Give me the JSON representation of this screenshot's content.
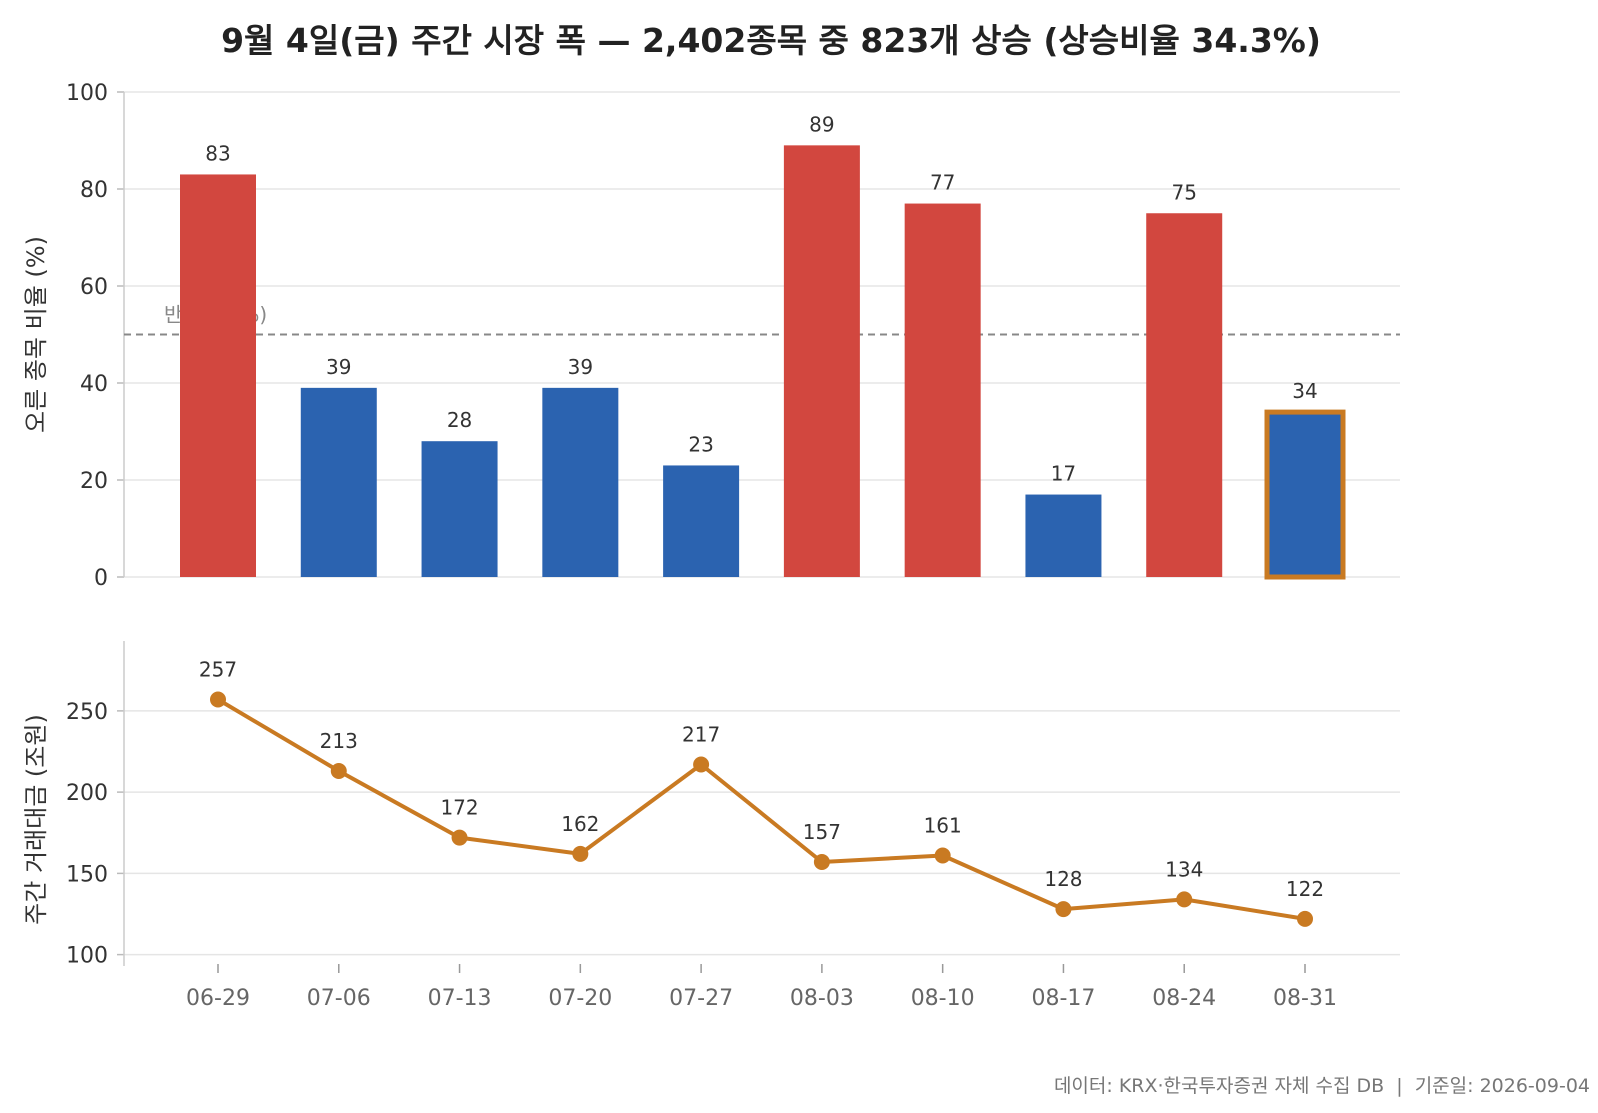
{
  "title": "9월 4일(금) 주간 시장 폭 — 2,402종목 중 823개 상승 (상승비율 34.3%)",
  "footer": "데이터: KRX·한국투자증권 자체 수집 DB  |  기준일: 2026-09-04",
  "colors": {
    "up": "#d2473f",
    "down": "#2b63b0",
    "accent": "#c97a22",
    "grid": "#e5e5e5",
    "refline": "#888888"
  },
  "chart_data": [
    {
      "type": "bar",
      "ylabel": "오른 종목 비율 (%)",
      "ylim": [
        0,
        100
      ],
      "yticks": [
        0,
        20,
        40,
        60,
        80,
        100
      ],
      "categories": [
        "06-29",
        "07-06",
        "07-13",
        "07-20",
        "07-27",
        "08-03",
        "08-10",
        "08-17",
        "08-24",
        "08-31"
      ],
      "values": [
        83,
        39,
        28,
        39,
        23,
        89,
        77,
        17,
        75,
        34
      ],
      "data_labels": [
        "83",
        "39",
        "28",
        "39",
        "23",
        "89",
        "77",
        "17",
        "75",
        "34"
      ],
      "reference_line": {
        "value": 50,
        "label": "반반 (50%)"
      },
      "highlight_category": "08-31",
      "grid": true
    },
    {
      "type": "line",
      "ylabel": "주간 거래대금 (조원)",
      "ylim": [
        93,
        293
      ],
      "yticks": [
        100,
        150,
        200,
        250
      ],
      "categories": [
        "06-29",
        "07-06",
        "07-13",
        "07-20",
        "07-27",
        "08-03",
        "08-10",
        "08-17",
        "08-24",
        "08-31"
      ],
      "values": [
        257,
        213,
        172,
        162,
        217,
        157,
        161,
        128,
        134,
        122
      ],
      "data_labels": [
        "257",
        "213",
        "172",
        "162",
        "217",
        "157",
        "161",
        "128",
        "134",
        "122"
      ],
      "grid": true
    }
  ]
}
